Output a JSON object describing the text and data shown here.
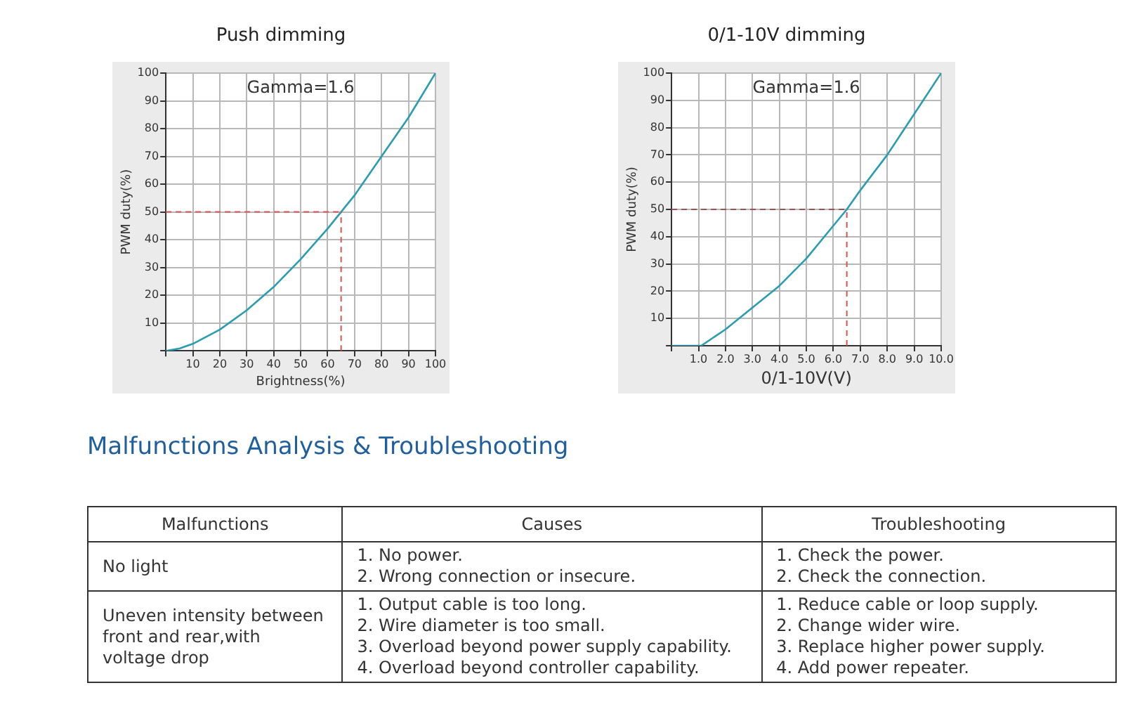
{
  "chart_data": [
    {
      "type": "line",
      "title": "Push dimming",
      "xlabel": "Brightness(%)",
      "ylabel": "PWM duty(%)",
      "annotations": [
        "Gamma=1.6"
      ],
      "x": [
        0,
        5,
        10,
        20,
        30,
        40,
        50,
        60,
        65,
        70,
        80,
        90,
        100
      ],
      "series": [
        {
          "color": "#2a9db0",
          "values": [
            0,
            0.8,
            2.5,
            7.6,
            14.6,
            23,
            33,
            44,
            50,
            56,
            70,
            84,
            100
          ]
        }
      ],
      "xlim": [
        0,
        100
      ],
      "xticks": [
        {
          "value": 0,
          "label": null
        },
        10,
        20,
        30,
        40,
        50,
        60,
        70,
        80,
        90,
        100
      ],
      "ylim": [
        0,
        100
      ],
      "yticks": [
        {
          "value": 0,
          "label": null
        },
        10,
        20,
        30,
        40,
        50,
        60,
        70,
        80,
        90,
        100
      ],
      "grid": true,
      "legend": false,
      "marker": "none",
      "line_style": "solid",
      "ref_lines": [
        {
          "axis": "y",
          "value": 50,
          "color": "#d9534f",
          "line_style": "dashed"
        },
        {
          "axis": "x",
          "value": 65,
          "color": "#d9534f",
          "line_style": "dashed"
        }
      ]
    },
    {
      "type": "line",
      "title": "0/1-10V dimming",
      "xlabel": "0/1-10V(V)",
      "ylabel": "PWM duty(%)",
      "annotations": [
        "Gamma=1.6"
      ],
      "x": [
        0,
        1.1,
        2,
        3,
        4,
        5,
        6,
        6.5,
        7,
        8,
        9,
        10
      ],
      "series": [
        {
          "color": "#2a9db0",
          "values": [
            0,
            0,
            6,
            14,
            22,
            32,
            44,
            50,
            57,
            70,
            85,
            100
          ]
        }
      ],
      "xlim": [
        0,
        10
      ],
      "xticks": [
        {
          "value": 0,
          "label": null
        },
        {
          "value": 1,
          "label": "1.0"
        },
        {
          "value": 2,
          "label": "2.0"
        },
        {
          "value": 3,
          "label": "3.0"
        },
        {
          "value": 4,
          "label": "4.0"
        },
        {
          "value": 5,
          "label": "5.0"
        },
        {
          "value": 6,
          "label": "6.0"
        },
        {
          "value": 7,
          "label": "7.0"
        },
        {
          "value": 8,
          "label": "8.0"
        },
        {
          "value": 9,
          "label": "9.0"
        },
        {
          "value": 10,
          "label": "10.0"
        }
      ],
      "ylim": [
        0,
        100
      ],
      "yticks": [
        {
          "value": 0,
          "label": null
        },
        10,
        20,
        30,
        40,
        50,
        60,
        70,
        80,
        90,
        100
      ],
      "grid": true,
      "legend": false,
      "marker": "none",
      "line_style": "solid",
      "ref_lines": [
        {
          "axis": "y",
          "value": 50,
          "color": "#a05050",
          "line_style": "dashed"
        },
        {
          "axis": "x",
          "value": 6.5,
          "color": "#d9534f",
          "line_style": "dashed"
        }
      ]
    },
    {
      "type": "other",
      "title": "Malfunctions Analysis & Troubleshooting",
      "categories": [
        "Malfunctions",
        "Causes",
        "Troubleshooting"
      ],
      "annotations": [
        "No light",
        "1. No power.\n2. Wrong connection or insecure.",
        "1. Check the power.\n2. Check the connection.",
        "Uneven intensity between front and rear,with voltage drop",
        "1. Output cable is too long.\n2. Wire diameter is too small.\n3. Overload beyond power supply capability.\n4. Overload beyond controller capability.",
        "1. Reduce cable or loop supply.\n2. Change wider wire.\n3. Replace higher power supply.\n4. Add power repeater."
      ]
    }
  ]
}
